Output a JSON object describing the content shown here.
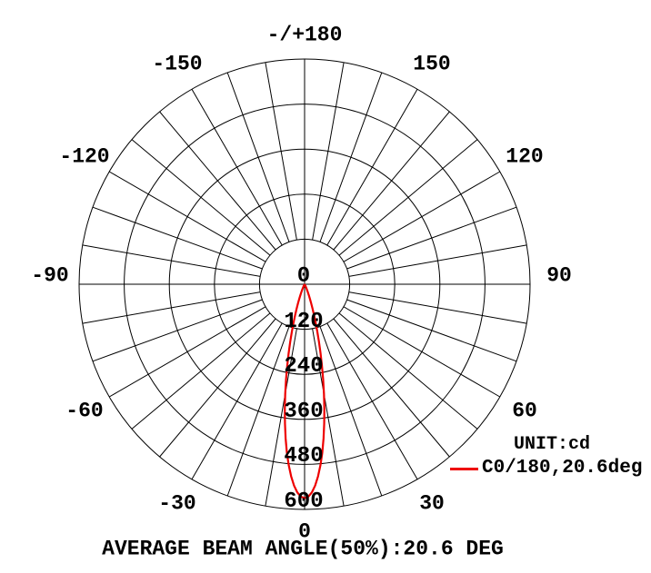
{
  "chart_data": {
    "type": "line",
    "subtype": "polar-luminous-intensity-distribution",
    "unit": "cd",
    "zero_angle_direction": "down",
    "grid_on": true,
    "grid_color": "#000000",
    "minor_spoke_step_deg": 10,
    "radial_ticks_cd": [
      0,
      120,
      240,
      360,
      480,
      600
    ],
    "radial_max_cd": 600,
    "angle_labels": [
      {
        "angle": 180,
        "label": "-/+180"
      },
      {
        "angle": 150,
        "label": "150"
      },
      {
        "angle": 120,
        "label": "120"
      },
      {
        "angle": 90,
        "label": "90"
      },
      {
        "angle": 60,
        "label": "60"
      },
      {
        "angle": 30,
        "label": "30"
      },
      {
        "angle": 0,
        "label": "0"
      },
      {
        "angle": -30,
        "label": "-30"
      },
      {
        "angle": -60,
        "label": "-60"
      },
      {
        "angle": -90,
        "label": "-90"
      },
      {
        "angle": -120,
        "label": "-120"
      },
      {
        "angle": -150,
        "label": "-150"
      }
    ],
    "series": [
      {
        "name": "C0/180,20.6deg",
        "color": "#ee0000",
        "peak_intensity_cd": 570,
        "beam_angle_50pct_deg": 20.6,
        "symmetric_about_zero": true,
        "half_profile_angles_deg": [
          0,
          1,
          2,
          3,
          4,
          5,
          6,
          7,
          8,
          9,
          10,
          11,
          12,
          13,
          14,
          15,
          16,
          17,
          18,
          19,
          20,
          21,
          22,
          23,
          24,
          25,
          26,
          27,
          28,
          29,
          30
        ],
        "half_profile_intensity_cd": [
          570,
          566,
          555,
          537,
          513,
          484,
          451,
          414,
          375,
          336,
          297,
          259,
          222,
          189,
          158,
          131,
          107,
          86,
          69,
          54,
          42,
          32,
          24,
          18,
          13,
          10,
          7,
          5,
          3,
          2,
          2
        ]
      }
    ],
    "legend_position": "right-bottom"
  },
  "legend": {
    "unit_label": "UNIT:cd",
    "series_label": "C0/180,20.6deg",
    "series_color": "#ee0000"
  },
  "caption": "AVERAGE BEAM ANGLE(50%):20.6 DEG"
}
